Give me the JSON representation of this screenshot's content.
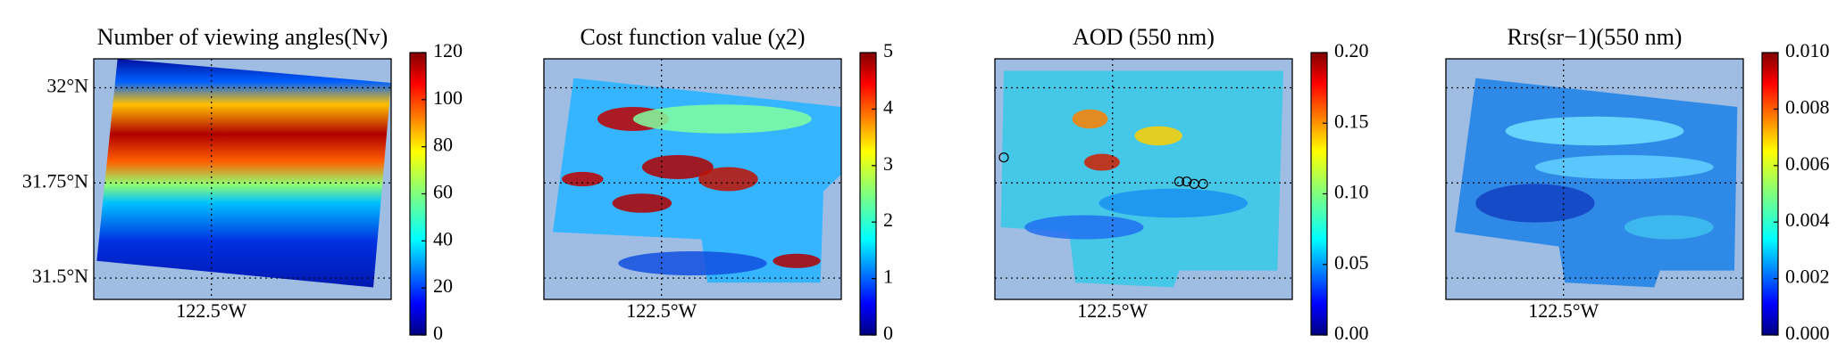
{
  "chart_data": [
    {
      "type": "map",
      "title": "Number of viewing angles(Nv)",
      "xlim": [
        -122.86,
        -121.95
      ],
      "ylim": [
        31.444,
        32.076
      ],
      "xticks": [
        {
          "value": -122.5,
          "label": "122.5°W"
        }
      ],
      "yticks": [
        {
          "value": 31.5,
          "label": "31.5°N"
        },
        {
          "value": 31.75,
          "label": "31.75°N"
        },
        {
          "value": 32,
          "label": "32°N"
        }
      ],
      "grid": true,
      "colormap": "jet",
      "colorbar": {
        "lim": [
          0,
          120
        ],
        "ticks": [
          0,
          20,
          40,
          60,
          80,
          100,
          120
        ]
      }
    },
    {
      "type": "map",
      "title": "Cost function value (χ2)",
      "xlim": [
        -122.86,
        -121.95
      ],
      "ylim": [
        31.444,
        32.076
      ],
      "xticks": [
        {
          "value": -122.5,
          "label": "122.5°W"
        }
      ],
      "yticks": [
        31.5,
        31.75,
        32
      ],
      "grid": true,
      "colormap": "jet",
      "colorbar": {
        "lim": [
          0,
          5
        ],
        "ticks": [
          0,
          1,
          2,
          3,
          4,
          5
        ]
      }
    },
    {
      "type": "map",
      "title": "AOD (550 nm)",
      "xlim": [
        -122.86,
        -121.95
      ],
      "ylim": [
        31.444,
        32.076
      ],
      "xticks": [
        {
          "value": -122.5,
          "label": "122.5°W"
        }
      ],
      "yticks": [
        31.5,
        31.75,
        32
      ],
      "grid": true,
      "colormap": "jet",
      "colorbar": {
        "lim": [
          0,
          0.2
        ],
        "ticks": [
          {
            "value": 0,
            "label": "0.00"
          },
          0.05,
          {
            "value": 0.1,
            "label": "0.10"
          },
          0.15,
          {
            "value": 0.2,
            "label": "0.20"
          }
        ]
      }
    },
    {
      "type": "map",
      "title": "Rrs(sr−1)(550 nm)",
      "xlim": [
        -122.86,
        -121.95
      ],
      "ylim": [
        31.444,
        32.076
      ],
      "xticks": [
        {
          "value": -122.5,
          "label": "122.5°W"
        }
      ],
      "yticks": [
        31.5,
        31.75,
        32
      ],
      "grid": true,
      "colormap": "jet",
      "colorbar": {
        "lim": [
          0,
          0.01
        ],
        "ticks": [
          {
            "value": 0,
            "label": "0.000"
          },
          {
            "value": 0.002,
            "label": "0.002"
          },
          {
            "value": 0.004,
            "label": "0.004"
          },
          {
            "value": 0.006,
            "label": "0.006"
          },
          {
            "value": 0.008,
            "label": "0.008"
          },
          {
            "value": 0.01,
            "label": "0.010"
          }
        ]
      }
    }
  ]
}
